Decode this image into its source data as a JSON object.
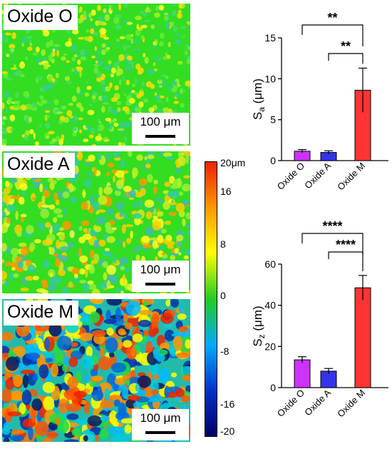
{
  "panels": [
    {
      "label": "Oxide O",
      "scalebar": "100 μm"
    },
    {
      "label": "Oxide A",
      "scalebar": "100 μm"
    },
    {
      "label": "Oxide M",
      "scalebar": "100 μm"
    }
  ],
  "colorbar": {
    "ticks": [
      "20μm",
      "16",
      "8",
      "0",
      "-8",
      "-16",
      "-20"
    ],
    "colors": [
      "#000066",
      "#0033cc",
      "#00aaff",
      "#22cc22",
      "#ffff00",
      "#ff9900",
      "#ee2200"
    ]
  },
  "chart_data": [
    {
      "type": "bar",
      "categories": [
        "Oxide O",
        "Oxide A",
        "Oxide M"
      ],
      "values": [
        1.15,
        1.0,
        8.6
      ],
      "errors": [
        0.2,
        0.2,
        2.7
      ],
      "colors": [
        "#cc33ff",
        "#3333ee",
        "#ff3333"
      ],
      "ylabel_main": "S",
      "ylabel_sub": "a",
      "ylabel_unit": " (μm)",
      "ylim": [
        0,
        15
      ],
      "yticks": [
        0,
        5,
        10,
        15
      ],
      "significance": [
        {
          "from": 0,
          "to": 2,
          "label": "**"
        },
        {
          "from": 1,
          "to": 2,
          "label": "**"
        }
      ]
    },
    {
      "type": "bar",
      "categories": [
        "Oxide O",
        "Oxide A",
        "Oxide M"
      ],
      "values": [
        13.5,
        8.0,
        48.5
      ],
      "errors": [
        1.5,
        1.3,
        6.0
      ],
      "colors": [
        "#cc33ff",
        "#3333ee",
        "#ff3333"
      ],
      "ylabel_main": "S",
      "ylabel_sub": "z",
      "ylabel_unit": " (μm)",
      "ylim": [
        0,
        60
      ],
      "yticks": [
        0,
        20,
        40,
        60
      ],
      "significance": [
        {
          "from": 0,
          "to": 2,
          "label": "****"
        },
        {
          "from": 1,
          "to": 2,
          "label": "****"
        }
      ]
    }
  ]
}
